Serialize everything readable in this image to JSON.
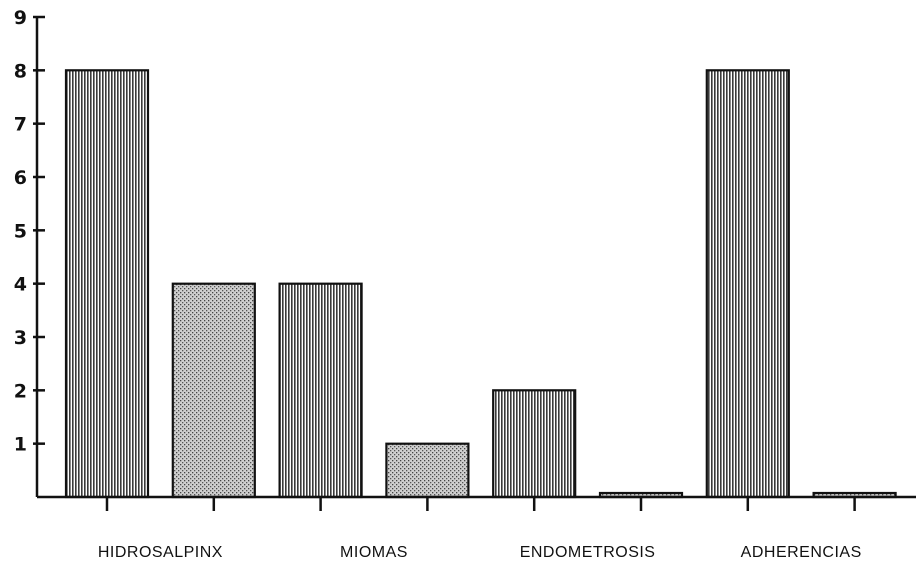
{
  "chart_data": {
    "type": "bar",
    "title": "",
    "xlabel": "",
    "ylabel": "",
    "ylim": [
      0,
      9
    ],
    "yticks": [
      1,
      2,
      3,
      4,
      5,
      6,
      7,
      8,
      9
    ],
    "grid": false,
    "legend": "none",
    "categories": [
      "HIDROSALPINX",
      "MIOMAS",
      "ENDOMETROSIS",
      "ADHERENCIAS"
    ],
    "series": [
      {
        "values": [
          8,
          4,
          2,
          8
        ],
        "pattern": "vertical-stripes"
      },
      {
        "values": [
          4,
          1,
          0,
          0
        ],
        "pattern": "stipple"
      }
    ]
  },
  "colors": {
    "ink": "#111111",
    "stripe_fill": "#b8b8b8",
    "stipple_fill": "#c4c4c4"
  }
}
